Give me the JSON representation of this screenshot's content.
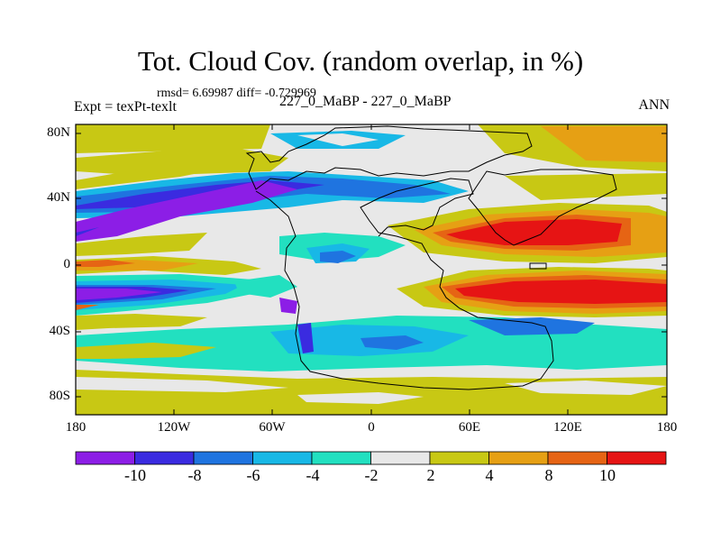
{
  "title": "Tot. Cloud Cov. (random overlap, in %)",
  "stats_text": "rmsd= 6.69987 diff= -0.729969",
  "left_label": "Expt = texPt-texlt",
  "center_label": "227_0_MaBP - 227_0_MaBP",
  "right_label": "ANN",
  "y_ticks": [
    "80N",
    "40N",
    "0",
    "40S",
    "80S"
  ],
  "x_ticks": [
    "180",
    "120W",
    "60W",
    "0",
    "60E",
    "120E",
    "180"
  ],
  "colorbar": {
    "labels": [
      "-10",
      "-8",
      "-6",
      "-4",
      "-2",
      "2",
      "4",
      "8",
      "10"
    ],
    "colors": [
      "#8c1ee6",
      "#3a2be0",
      "#1f74e0",
      "#18b8e6",
      "#22e0c0",
      "#e8e8e8",
      "#c8c814",
      "#e6a014",
      "#e66414",
      "#e61414"
    ]
  }
}
